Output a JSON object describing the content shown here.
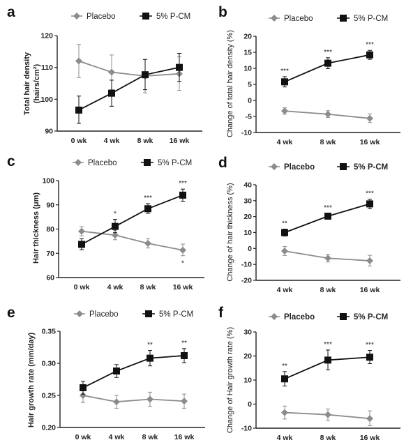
{
  "figure": {
    "colors": {
      "placebo": "#8c8c8c",
      "pcm": "#111111",
      "axis": "#222222"
    }
  },
  "chart_data": [
    {
      "id": "a",
      "panel_label": "a",
      "type": "line",
      "title": "",
      "legend": [
        "Placebo",
        "5% P-CM"
      ],
      "legend_placement": "top",
      "xlabel": "",
      "ylabel": "Total hair density (hairs/cm²)",
      "ylabel_lines": [
        "Total hair density",
        "(hairs/cm²)"
      ],
      "categories": [
        "0 wk",
        "4 wk",
        "8 wk",
        "16 wk"
      ],
      "ylim": [
        90,
        120
      ],
      "yticks": [
        90,
        100,
        110,
        120
      ],
      "ytick_labels": [
        "90",
        "100",
        "110",
        "120"
      ],
      "grid": false,
      "series": [
        {
          "name": "Placebo",
          "marker": "diamond",
          "values": [
            112.0,
            108.5,
            107.3,
            108.0
          ],
          "err_low": [
            106.8,
            103.0,
            102.0,
            102.8
          ],
          "err_high": [
            117.2,
            113.9,
            112.5,
            113.3
          ],
          "significance": [
            "",
            "",
            "",
            ""
          ]
        },
        {
          "name": "5% P-CM",
          "marker": "square",
          "values": [
            96.6,
            101.9,
            107.7,
            110.0
          ],
          "err_low": [
            92.4,
            97.8,
            103.0,
            105.6
          ],
          "err_high": [
            101.0,
            106.0,
            112.5,
            114.4
          ],
          "significance": [
            "",
            "",
            "",
            ""
          ]
        }
      ]
    },
    {
      "id": "b",
      "panel_label": "b",
      "type": "line",
      "title": "",
      "legend": [
        "Placebo",
        "5% P-CM"
      ],
      "legend_placement": "top",
      "xlabel": "",
      "ylabel": "Change of total hair density  (%)",
      "ylabel_lines": [
        "Change of total hair density  (%)"
      ],
      "categories": [
        "4 wk",
        "8 wk",
        "16 wk"
      ],
      "ylim": [
        -10,
        20
      ],
      "yticks": [
        -10,
        -5,
        0,
        5,
        10,
        15,
        20
      ],
      "ytick_labels": [
        "-10",
        "-5",
        "0",
        "5",
        "10",
        "15",
        "20"
      ],
      "grid": false,
      "series": [
        {
          "name": "Placebo",
          "marker": "diamond",
          "values": [
            -3.3,
            -4.3,
            -5.6
          ],
          "err_low": [
            -4.3,
            -5.3,
            -6.9
          ],
          "err_high": [
            -2.3,
            -3.2,
            -4.2
          ],
          "significance": [
            "",
            "",
            ""
          ]
        },
        {
          "name": "5% P-CM",
          "marker": "square",
          "values": [
            5.8,
            11.6,
            14.2
          ],
          "err_low": [
            4.2,
            9.9,
            12.8
          ],
          "err_high": [
            7.4,
            13.3,
            15.6
          ],
          "significance": [
            "***",
            "***",
            "***"
          ]
        }
      ]
    },
    {
      "id": "c",
      "panel_label": "c",
      "type": "line",
      "title": "",
      "legend": [
        "Placebo",
        "5% P-CM"
      ],
      "legend_placement": "top",
      "xlabel": "",
      "ylabel": "Hair thickness (μm)",
      "ylabel_lines": [
        "Hair thickness (μm)"
      ],
      "categories": [
        "0 wk",
        "4 wk",
        "8 wk",
        "16 wk"
      ],
      "ylim": [
        60,
        100
      ],
      "yticks": [
        60,
        70,
        80,
        90,
        100
      ],
      "ytick_labels": [
        "60",
        "70",
        "80",
        "90",
        "100"
      ],
      "grid": false,
      "series": [
        {
          "name": "Placebo",
          "marker": "diamond",
          "values": [
            79.1,
            77.5,
            74.1,
            71.3
          ],
          "err_low": [
            77.2,
            75.6,
            72.2,
            69.0
          ],
          "err_high": [
            81.0,
            79.5,
            76.0,
            73.8
          ],
          "significance": [
            "",
            "",
            "",
            "*"
          ],
          "significance_position": "below"
        },
        {
          "name": "5% P-CM",
          "marker": "square",
          "values": [
            73.7,
            81.1,
            88.4,
            94.0
          ],
          "err_low": [
            71.5,
            78.5,
            86.5,
            91.5
          ],
          "err_high": [
            76.0,
            84.0,
            90.5,
            96.5
          ],
          "significance": [
            "",
            "*",
            "***",
            "***"
          ]
        }
      ]
    },
    {
      "id": "d",
      "panel_label": "d",
      "type": "line",
      "title": "",
      "legend": [
        "Placebo",
        "5% P-CM"
      ],
      "legend_placement": "top",
      "legend_bold": true,
      "xlabel": "",
      "ylabel": "Change of hair thickness  (%)",
      "ylabel_lines": [
        "Change of hair thickness  (%)"
      ],
      "categories": [
        "4 wk",
        "8 wk",
        "16 wk"
      ],
      "ylim": [
        -20,
        40
      ],
      "yticks": [
        -20,
        -10,
        0,
        10,
        20,
        30,
        40
      ],
      "ytick_labels": [
        "-20",
        "-10",
        "0",
        "10",
        "20",
        "30",
        "40"
      ],
      "grid": false,
      "series": [
        {
          "name": "Placebo",
          "marker": "diamond",
          "values": [
            -1.6,
            -6.1,
            -7.7
          ],
          "err_low": [
            -4.4,
            -8.5,
            -11.0
          ],
          "err_high": [
            1.2,
            -3.6,
            -4.3
          ],
          "significance": [
            "",
            "",
            ""
          ]
        },
        {
          "name": "5% P-CM",
          "marker": "square",
          "values": [
            10.0,
            20.3,
            28.0
          ],
          "err_low": [
            7.8,
            18.5,
            25.0
          ],
          "err_high": [
            12.2,
            22.0,
            31.0
          ],
          "significance": [
            "**",
            "***",
            "***"
          ]
        }
      ]
    },
    {
      "id": "e",
      "panel_label": "e",
      "type": "line",
      "title": "",
      "legend": [
        "Placebo",
        "5% P-CM"
      ],
      "legend_placement": "top",
      "xlabel": "",
      "ylabel": "Hair growth rate (mm/day)",
      "ylabel_lines": [
        "Hair growth rate (mm/day)"
      ],
      "categories": [
        "0 wk",
        "4 wk",
        "8 wk",
        "16 wk"
      ],
      "ylim": [
        0.2,
        0.35
      ],
      "yticks": [
        0.2,
        0.25,
        0.3,
        0.35
      ],
      "ytick_labels": [
        "0.20",
        "0.25",
        "0.30",
        "0.35"
      ],
      "grid": false,
      "series": [
        {
          "name": "Placebo",
          "marker": "diamond",
          "values": [
            0.25,
            0.24,
            0.244,
            0.241
          ],
          "err_low": [
            0.239,
            0.23,
            0.233,
            0.23
          ],
          "err_high": [
            0.261,
            0.25,
            0.255,
            0.252
          ],
          "significance": [
            "",
            "",
            "",
            ""
          ]
        },
        {
          "name": "5% P-CM",
          "marker": "square",
          "values": [
            0.262,
            0.288,
            0.308,
            0.312
          ],
          "err_low": [
            0.252,
            0.278,
            0.296,
            0.301
          ],
          "err_high": [
            0.272,
            0.298,
            0.32,
            0.323
          ],
          "significance": [
            "",
            "",
            "**",
            "**"
          ]
        }
      ]
    },
    {
      "id": "f",
      "panel_label": "f",
      "type": "line",
      "title": "",
      "legend": [
        "Placebo",
        "5% P-CM"
      ],
      "legend_placement": "top",
      "legend_bold": true,
      "xlabel": "",
      "ylabel": "Change of Hair growth rate  (%)",
      "ylabel_lines": [
        "Change of Hair growth rate  (%)"
      ],
      "categories": [
        "4 wk",
        "8 wk",
        "16 wk"
      ],
      "ylim": [
        -10,
        30
      ],
      "yticks": [
        -10,
        0,
        10,
        20,
        30
      ],
      "ytick_labels": [
        "-10",
        "0",
        "10",
        "20",
        "30"
      ],
      "grid": false,
      "series": [
        {
          "name": "Placebo",
          "marker": "diamond",
          "values": [
            -3.5,
            -4.4,
            -6.0
          ],
          "err_low": [
            -6.2,
            -6.8,
            -9.0
          ],
          "err_high": [
            -0.8,
            -2.0,
            -2.8
          ],
          "significance": [
            "",
            "",
            ""
          ]
        },
        {
          "name": "5% P-CM",
          "marker": "square",
          "values": [
            10.5,
            18.3,
            19.5
          ],
          "err_low": [
            7.5,
            14.2,
            16.8
          ],
          "err_high": [
            13.5,
            22.5,
            22.3
          ],
          "significance": [
            "**",
            "***",
            "***"
          ]
        }
      ]
    }
  ]
}
